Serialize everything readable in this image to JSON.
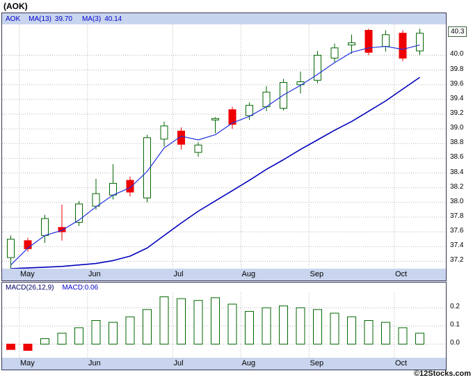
{
  "page": {
    "title": "(AOK)",
    "watermark": "©12Stocks.com"
  },
  "price_chart": {
    "header": {
      "symbol": "AOK",
      "ma13_label": "MA(13)",
      "ma13_value": "39.70",
      "ma3_label": "MA(3)",
      "ma3_value": "40.14"
    },
    "last_price": {
      "label": "40.3",
      "value": 40.3
    }
  },
  "macd_chart": {
    "header": {
      "params": "MACD(26,12,9)",
      "value": "MACD:0.06"
    }
  },
  "chart_data": [
    {
      "type": "candlestick",
      "title": "AOK weekly price with moving averages",
      "ylim": [
        37.1,
        40.42
      ],
      "y_ticks": [
        40.0,
        39.8,
        39.6,
        39.4,
        39.2,
        39.0,
        38.8,
        38.6,
        38.4,
        38.2,
        38.0,
        37.8,
        37.6,
        37.4,
        37.2
      ],
      "last_price": 40.3,
      "months": [
        {
          "label": "May",
          "index": 1
        },
        {
          "label": "Jun",
          "index": 5
        },
        {
          "label": "Jul",
          "index": 10
        },
        {
          "label": "Aug",
          "index": 14
        },
        {
          "label": "Sep",
          "index": 18
        },
        {
          "label": "Oct",
          "index": 23
        }
      ],
      "candles_format": "[open, high, low, close]",
      "candles": [
        [
          37.25,
          37.55,
          37.1,
          37.5
        ],
        [
          37.48,
          37.52,
          37.33,
          37.37
        ],
        [
          37.55,
          37.83,
          37.45,
          37.78
        ],
        [
          37.66,
          37.97,
          37.48,
          37.6
        ],
        [
          37.73,
          38.02,
          37.68,
          37.98
        ],
        [
          37.95,
          38.32,
          37.9,
          38.12
        ],
        [
          38.1,
          38.52,
          38.04,
          38.26
        ],
        [
          38.3,
          38.35,
          38.08,
          38.14
        ],
        [
          38.06,
          38.92,
          38.0,
          38.88
        ],
        [
          38.86,
          39.1,
          38.76,
          39.04
        ],
        [
          38.97,
          39.02,
          38.72,
          38.79
        ],
        [
          38.68,
          38.82,
          38.62,
          38.78
        ],
        [
          39.12,
          39.16,
          38.94,
          39.14
        ],
        [
          39.26,
          39.3,
          39.0,
          39.06
        ],
        [
          39.18,
          39.36,
          39.12,
          39.32
        ],
        [
          39.3,
          39.58,
          39.24,
          39.5
        ],
        [
          39.28,
          39.68,
          39.25,
          39.63
        ],
        [
          39.6,
          39.78,
          39.48,
          39.64
        ],
        [
          39.66,
          40.06,
          39.62,
          40.0
        ],
        [
          39.96,
          40.16,
          39.9,
          40.1
        ],
        [
          40.14,
          40.28,
          40.02,
          40.17
        ],
        [
          40.34,
          40.36,
          40.0,
          40.04
        ],
        [
          40.12,
          40.34,
          40.05,
          40.28
        ],
        [
          40.3,
          40.34,
          39.92,
          39.96
        ],
        [
          40.06,
          40.36,
          40.0,
          40.3
        ]
      ],
      "series": [
        {
          "name": "MA(13)",
          "color": "#0000bb",
          "width": 1.6,
          "values": [
            37.1,
            37.11,
            37.12,
            37.13,
            37.15,
            37.17,
            37.21,
            37.27,
            37.38,
            37.55,
            37.72,
            37.88,
            38.02,
            38.16,
            38.3,
            38.45,
            38.58,
            38.72,
            38.85,
            38.98,
            39.1,
            39.24,
            39.38,
            39.54,
            39.7
          ]
        },
        {
          "name": "MA(3)",
          "color": "#2233dd",
          "width": 1.2,
          "values": [
            37.15,
            37.38,
            37.55,
            37.62,
            37.76,
            37.94,
            38.1,
            38.2,
            38.42,
            38.74,
            38.9,
            38.85,
            38.92,
            39.08,
            39.17,
            39.3,
            39.46,
            39.59,
            39.74,
            39.9,
            40.04,
            40.1,
            40.12,
            40.08,
            40.14
          ]
        }
      ],
      "colors": {
        "up": "#006600",
        "down": "#ee0000",
        "grid": "#b3b3b3"
      }
    },
    {
      "type": "bar",
      "title": "MACD(26,12,9) histogram",
      "ylim": [
        -0.075,
        0.285
      ],
      "y_ticks": [
        0.2,
        0.1,
        0.0
      ],
      "months": [
        {
          "label": "May",
          "index": 1
        },
        {
          "label": "Jun",
          "index": 5
        },
        {
          "label": "Jul",
          "index": 10
        },
        {
          "label": "Aug",
          "index": 14
        },
        {
          "label": "Sep",
          "index": 18
        },
        {
          "label": "Oct",
          "index": 23
        }
      ],
      "values": [
        -0.03,
        -0.035,
        0.03,
        0.06,
        0.09,
        0.13,
        0.12,
        0.15,
        0.19,
        0.26,
        0.25,
        0.24,
        0.255,
        0.22,
        0.18,
        0.2,
        0.21,
        0.2,
        0.19,
        0.17,
        0.15,
        0.13,
        0.12,
        0.09,
        0.06
      ],
      "colors": {
        "pos": "#006600",
        "neg": "#ee0000",
        "grid": "#b3b3b3"
      }
    }
  ]
}
